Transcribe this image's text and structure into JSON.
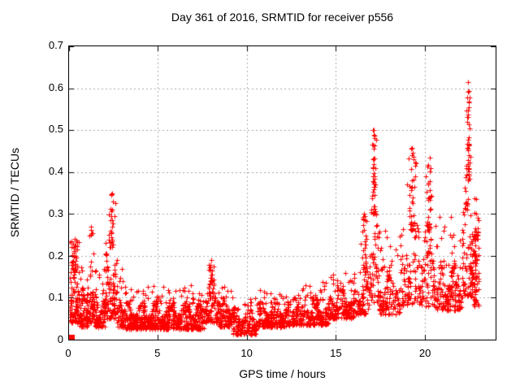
{
  "figure": {
    "title": "Day 361 of 2016, SRMTID for receiver p556",
    "xlabel": "GPS time / hours",
    "ylabel": "SRMTID / TECUs"
  },
  "chart_data": {
    "type": "scatter",
    "title": "Day 361 of 2016, SRMTID for receiver p556",
    "xlabel": "GPS time / hours",
    "ylabel": "SRMTID / TECUs",
    "xlim": [
      0,
      24
    ],
    "ylim": [
      0,
      0.7
    ],
    "xticks": [
      0,
      5,
      10,
      15,
      20
    ],
    "xtick_labels": [
      "0",
      "5",
      "10",
      "15",
      "20"
    ],
    "yticks": [
      0,
      0.1,
      0.2,
      0.3,
      0.4,
      0.5,
      0.6,
      0.7
    ],
    "ytick_labels": [
      "0",
      "0.1",
      "0.2",
      "0.3",
      "0.4",
      "0.5",
      "0.6",
      "0.7"
    ],
    "grid": true,
    "grid_style": "dotted",
    "legend": "none",
    "marker": "plus",
    "marker_size": 7,
    "marker_color": "#ff0000",
    "grid_color": "#a9a9a9",
    "axis_color": "#000000",
    "background": "#ffffff",
    "data_x_range": [
      0.05,
      23.0
    ],
    "baseline_band": [
      0.03,
      0.1
    ],
    "peaks": [
      [
        0.3,
        0.24
      ],
      [
        1.25,
        0.27
      ],
      [
        2.38,
        0.345
      ],
      [
        2.45,
        0.33
      ],
      [
        2.42,
        0.31
      ],
      [
        8.0,
        0.19
      ],
      [
        8.12,
        0.175
      ],
      [
        16.6,
        0.3
      ],
      [
        17.12,
        0.5
      ],
      [
        17.2,
        0.48
      ],
      [
        17.15,
        0.455
      ],
      [
        19.25,
        0.455
      ],
      [
        19.3,
        0.44
      ],
      [
        19.5,
        0.42
      ],
      [
        20.28,
        0.435
      ],
      [
        20.35,
        0.41
      ],
      [
        22.45,
        0.615
      ],
      [
        22.42,
        0.578
      ],
      [
        22.47,
        0.568
      ],
      [
        22.5,
        0.555
      ],
      [
        22.55,
        0.505
      ],
      [
        22.38,
        0.52
      ]
    ],
    "special_points": [
      {
        "x": 0.14,
        "y": 0.0,
        "marker": "filled-square",
        "color": "#ff0000"
      }
    ],
    "segment_format": "x0, x1, n, yLo, yHi, tailFrac, tailMax, focusX, focusWidth",
    "density_segments": [
      [
        0.0,
        0.6,
        130,
        0.04,
        0.16,
        0.3,
        0.24,
        0.3,
        0.3
      ],
      [
        0.6,
        1.1,
        80,
        0.03,
        0.12,
        0.12,
        0.2,
        null,
        null
      ],
      [
        1.1,
        1.45,
        60,
        0.04,
        0.15,
        0.2,
        0.265,
        1.25,
        0.15
      ],
      [
        1.45,
        2.05,
        90,
        0.03,
        0.11,
        0.12,
        0.17,
        null,
        null
      ],
      [
        2.05,
        2.7,
        120,
        0.05,
        0.22,
        0.3,
        0.35,
        2.4,
        0.2
      ],
      [
        2.7,
        3.2,
        70,
        0.03,
        0.11,
        0.1,
        0.18,
        null,
        null
      ],
      [
        3.2,
        7.6,
        620,
        0.025,
        0.085,
        0.1,
        0.13,
        null,
        null
      ],
      [
        7.6,
        8.4,
        110,
        0.04,
        0.13,
        0.2,
        0.19,
        8.0,
        0.25
      ],
      [
        8.4,
        9.2,
        100,
        0.03,
        0.1,
        0.1,
        0.13,
        null,
        null
      ],
      [
        9.2,
        10.6,
        170,
        0.012,
        0.07,
        0.1,
        0.1,
        null,
        null
      ],
      [
        10.6,
        12.5,
        230,
        0.03,
        0.085,
        0.1,
        0.12,
        null,
        null
      ],
      [
        12.5,
        14.6,
        250,
        0.035,
        0.095,
        0.1,
        0.14,
        null,
        null
      ],
      [
        14.6,
        16.0,
        170,
        0.05,
        0.115,
        0.12,
        0.16,
        null,
        null
      ],
      [
        16.0,
        16.9,
        110,
        0.06,
        0.16,
        0.25,
        0.3,
        16.6,
        0.3
      ],
      [
        16.9,
        17.45,
        95,
        0.09,
        0.3,
        0.35,
        0.5,
        17.15,
        0.15
      ],
      [
        17.45,
        18.6,
        115,
        0.06,
        0.16,
        0.15,
        0.26,
        null,
        null
      ],
      [
        18.6,
        19.75,
        135,
        0.08,
        0.26,
        0.3,
        0.46,
        19.3,
        0.3
      ],
      [
        19.75,
        20.6,
        115,
        0.08,
        0.26,
        0.28,
        0.44,
        20.25,
        0.2
      ],
      [
        20.6,
        22.1,
        175,
        0.07,
        0.17,
        0.15,
        0.3,
        null,
        null
      ],
      [
        22.1,
        22.75,
        135,
        0.1,
        0.38,
        0.35,
        0.615,
        22.45,
        0.15
      ],
      [
        22.75,
        23.05,
        75,
        0.08,
        0.24,
        0.2,
        0.35,
        null,
        null
      ]
    ],
    "seed": 20161227
  }
}
